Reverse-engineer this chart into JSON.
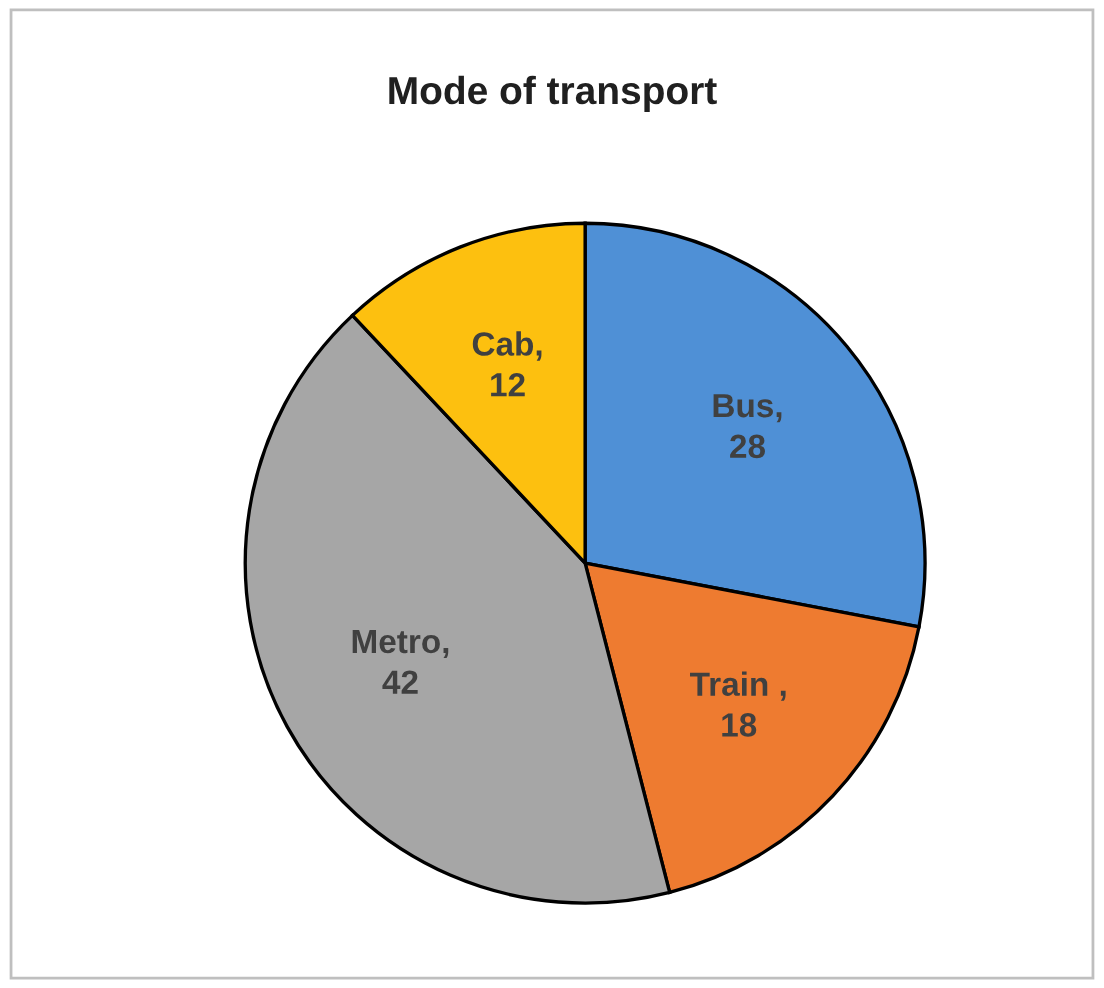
{
  "chart_data": {
    "type": "pie",
    "title": "Mode of transport",
    "categories": [
      "Bus",
      "Train ",
      "Metro",
      "Cab"
    ],
    "values": [
      28,
      18,
      42,
      12
    ],
    "value_labels": [
      ",\n28",
      ",\n18",
      ",\n42",
      ",\n12"
    ],
    "colors": [
      "#4f90d6",
      "#ee7b30",
      "#a6a6a6",
      "#fdc00f"
    ],
    "legend": false
  }
}
